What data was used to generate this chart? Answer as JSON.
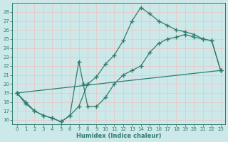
{
  "xlabel": "Humidex (Indice chaleur)",
  "bg_color": "#cce8e8",
  "grid_color": "#b8d8d8",
  "line_color": "#2e7d6e",
  "xlim": [
    -0.5,
    23.5
  ],
  "ylim": [
    15.5,
    29.0
  ],
  "xticks": [
    0,
    1,
    2,
    3,
    4,
    5,
    6,
    7,
    8,
    9,
    10,
    11,
    12,
    13,
    14,
    15,
    16,
    17,
    18,
    19,
    20,
    21,
    22,
    23
  ],
  "yticks": [
    16,
    17,
    18,
    19,
    20,
    21,
    22,
    23,
    24,
    25,
    26,
    27,
    28
  ],
  "curve1_x": [
    0,
    1,
    2,
    3,
    4,
    5,
    6,
    7,
    8,
    9,
    10,
    11,
    12,
    13,
    14,
    15,
    16,
    17,
    18,
    19,
    20,
    21,
    22,
    23
  ],
  "curve1_y": [
    19.0,
    18.0,
    17.0,
    16.5,
    16.2,
    15.8,
    16.5,
    17.5,
    20.0,
    20.8,
    22.2,
    23.2,
    24.8,
    27.0,
    28.5,
    27.8,
    27.0,
    26.5,
    26.0,
    25.8,
    25.5,
    25.0,
    24.8,
    21.5
  ],
  "curve2_x": [
    0,
    1,
    2,
    3,
    4,
    5,
    6,
    7,
    7.5,
    8,
    9,
    10,
    11,
    12,
    13,
    14,
    15,
    16,
    17,
    18,
    19,
    20,
    21,
    22,
    23
  ],
  "curve2_y": [
    19.0,
    17.8,
    17.0,
    16.5,
    16.2,
    15.8,
    16.5,
    22.5,
    20.0,
    17.5,
    17.5,
    18.5,
    20.0,
    21.0,
    21.5,
    22.0,
    23.5,
    24.5,
    25.0,
    25.2,
    25.5,
    25.2,
    25.0,
    24.8,
    21.5
  ],
  "curve3_x": [
    0,
    23
  ],
  "curve3_y": [
    19.0,
    21.5
  ]
}
